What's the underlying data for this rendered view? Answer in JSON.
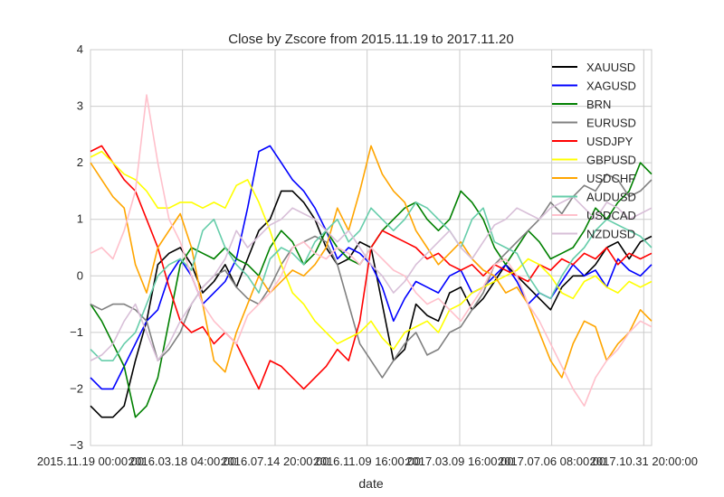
{
  "chart_data": {
    "type": "line",
    "title": "Close by Zscore from 2015.11.19 to 2017.11.20",
    "xlabel": "date",
    "ylabel": "",
    "ylim": [
      -3,
      4
    ],
    "yticks": [
      -3,
      -2,
      -1,
      0,
      1,
      2,
      3,
      4
    ],
    "ytick_labels": [
      "−3",
      "−2",
      "−1",
      "0",
      "1",
      "2",
      "3",
      "4"
    ],
    "xlim": [
      0,
      1
    ],
    "xticks": [
      0,
      0.164,
      0.329,
      0.493,
      0.658,
      0.822,
      0.986
    ],
    "xtick_labels": [
      "2015.11.19 00:00:00",
      "2016.03.18 04:00:00",
      "2016.07.14 20:00:00",
      "2016.11.09 16:00:00",
      "2017.03.09 16:00:00",
      "2017.07.06 08:00:00",
      "2017.10.31 20:00:00"
    ],
    "grid": true,
    "legend_position": "top-right",
    "x": [
      0,
      0.02,
      0.04,
      0.06,
      0.08,
      0.1,
      0.12,
      0.14,
      0.16,
      0.18,
      0.2,
      0.22,
      0.24,
      0.26,
      0.28,
      0.3,
      0.32,
      0.34,
      0.36,
      0.38,
      0.4,
      0.42,
      0.44,
      0.46,
      0.48,
      0.5,
      0.52,
      0.54,
      0.56,
      0.58,
      0.6,
      0.62,
      0.64,
      0.66,
      0.68,
      0.7,
      0.72,
      0.74,
      0.76,
      0.78,
      0.8,
      0.82,
      0.84,
      0.86,
      0.88,
      0.9,
      0.92,
      0.94,
      0.96,
      0.98,
      1.0
    ],
    "series": [
      {
        "name": "XAUUSD",
        "color": "#000000",
        "values": [
          -2.3,
          -2.5,
          -2.5,
          -2.3,
          -1.5,
          -0.8,
          0.2,
          0.4,
          0.5,
          0.2,
          -0.3,
          -0.1,
          0.2,
          -0.2,
          0.3,
          0.8,
          1.0,
          1.5,
          1.5,
          1.3,
          1.0,
          0.5,
          0.2,
          0.3,
          0.6,
          0.5,
          -0.5,
          -1.5,
          -1.3,
          -0.5,
          -0.7,
          -0.8,
          -0.3,
          -0.2,
          -0.6,
          -0.4,
          -0.1,
          0.2,
          0.0,
          -0.2,
          -0.4,
          -0.6,
          -0.2,
          0.0,
          0.0,
          0.2,
          0.5,
          0.6,
          0.3,
          0.6,
          0.7
        ]
      },
      {
        "name": "XAGUSD",
        "color": "#0000ff",
        "values": [
          -1.8,
          -2.0,
          -2.0,
          -1.6,
          -1.2,
          -0.8,
          -0.6,
          0.0,
          0.3,
          0.0,
          -0.5,
          -0.3,
          -0.1,
          0.3,
          1.2,
          2.2,
          2.3,
          2.0,
          1.7,
          1.5,
          1.2,
          0.8,
          0.3,
          0.5,
          0.4,
          0.2,
          -0.2,
          -0.8,
          -0.4,
          -0.1,
          -0.2,
          -0.3,
          0.0,
          0.1,
          -0.3,
          -0.2,
          0.0,
          0.2,
          -0.1,
          -0.5,
          -0.3,
          -0.4,
          -0.1,
          0.2,
          0.0,
          0.1,
          -0.2,
          0.3,
          0.1,
          0.0,
          0.2
        ]
      },
      {
        "name": "BRN",
        "color": "#008000",
        "values": [
          -0.5,
          -0.8,
          -1.2,
          -1.6,
          -2.5,
          -2.3,
          -1.8,
          -0.8,
          0.2,
          0.5,
          0.4,
          0.3,
          0.5,
          0.3,
          0.2,
          0.0,
          0.5,
          0.8,
          0.6,
          0.2,
          0.4,
          0.8,
          0.5,
          0.3,
          0.2,
          0.5,
          0.8,
          1.0,
          1.2,
          1.3,
          1.0,
          0.8,
          1.0,
          1.5,
          1.3,
          1.0,
          0.5,
          0.2,
          0.5,
          0.8,
          0.6,
          0.3,
          0.4,
          0.5,
          0.8,
          1.2,
          1.0,
          1.3,
          1.5,
          2.0,
          1.8
        ]
      },
      {
        "name": "EURUSD",
        "color": "#808080",
        "values": [
          -0.5,
          -0.6,
          -0.5,
          -0.5,
          -0.6,
          -0.8,
          -1.5,
          -1.3,
          -1.0,
          -0.5,
          -0.2,
          0.0,
          0.1,
          -0.2,
          -0.4,
          -0.5,
          -0.2,
          0.2,
          0.5,
          0.6,
          0.7,
          0.6,
          0.2,
          -0.5,
          -1.2,
          -1.5,
          -1.8,
          -1.5,
          -1.2,
          -1.0,
          -1.4,
          -1.3,
          -1.0,
          -0.9,
          -0.6,
          -0.3,
          0.2,
          0.4,
          0.6,
          0.8,
          1.0,
          1.3,
          1.1,
          1.4,
          1.6,
          1.5,
          1.8,
          1.7,
          1.4,
          1.5,
          1.7
        ]
      },
      {
        "name": "USDJPY",
        "color": "#ff0000",
        "values": [
          2.2,
          2.3,
          2.0,
          1.7,
          1.5,
          1.0,
          0.5,
          -0.2,
          -0.8,
          -1.0,
          -0.9,
          -1.2,
          -1.0,
          -1.2,
          -1.6,
          -2.0,
          -1.5,
          -1.6,
          -1.8,
          -2.0,
          -1.8,
          -1.6,
          -1.3,
          -1.5,
          -0.8,
          0.5,
          0.8,
          0.7,
          0.6,
          0.5,
          0.3,
          0.4,
          0.2,
          0.1,
          0.2,
          0.0,
          0.2,
          0.1,
          0.0,
          -0.1,
          0.2,
          0.1,
          0.3,
          0.2,
          0.4,
          0.3,
          0.5,
          0.2,
          0.4,
          0.3,
          0.4
        ]
      },
      {
        "name": "GBPUSD",
        "color": "#ffff00",
        "values": [
          2.1,
          2.2,
          2.0,
          1.8,
          1.7,
          1.5,
          1.2,
          1.2,
          1.3,
          1.3,
          1.2,
          1.3,
          1.2,
          1.6,
          1.7,
          1.3,
          0.8,
          0.2,
          -0.3,
          -0.5,
          -0.8,
          -1.0,
          -1.2,
          -1.1,
          -1.0,
          -0.8,
          -1.1,
          -1.3,
          -1.0,
          -0.9,
          -0.8,
          -1.0,
          -0.6,
          -0.5,
          -0.3,
          -0.2,
          -0.1,
          0.0,
          0.1,
          0.3,
          0.2,
          0.0,
          -0.3,
          -0.4,
          -0.1,
          0.0,
          -0.2,
          -0.3,
          -0.1,
          -0.2,
          -0.1
        ]
      },
      {
        "name": "USDCHF",
        "color": "#ffa500",
        "values": [
          2.0,
          1.7,
          1.4,
          1.2,
          0.2,
          -0.3,
          0.5,
          0.8,
          1.1,
          0.5,
          -0.5,
          -1.5,
          -1.7,
          -1.0,
          -0.5,
          0.0,
          -0.3,
          -0.1,
          0.1,
          0.0,
          0.2,
          0.5,
          1.2,
          0.8,
          1.5,
          2.3,
          1.8,
          1.5,
          1.3,
          0.8,
          0.5,
          0.2,
          0.4,
          0.6,
          0.3,
          0.1,
          0.0,
          -0.3,
          -0.2,
          -0.5,
          -1.0,
          -1.5,
          -1.8,
          -1.2,
          -0.8,
          -0.9,
          -1.5,
          -1.2,
          -1.0,
          -0.6,
          -0.8
        ]
      },
      {
        "name": "AUDUSD",
        "color": "#66cdaa",
        "values": [
          -1.3,
          -1.5,
          -1.5,
          -1.2,
          -1.0,
          -0.5,
          0.0,
          0.2,
          0.3,
          0.1,
          0.8,
          1.0,
          0.5,
          0.2,
          0.0,
          -0.3,
          0.3,
          0.5,
          0.4,
          0.2,
          0.6,
          0.8,
          1.0,
          0.6,
          0.8,
          1.2,
          1.0,
          0.8,
          1.0,
          1.3,
          1.2,
          1.0,
          0.8,
          0.5,
          1.0,
          1.2,
          0.6,
          0.5,
          0.4,
          0.0,
          -0.3,
          -0.4,
          0.0,
          0.3,
          0.5,
          0.8,
          1.0,
          0.9,
          0.8,
          0.7,
          0.5
        ]
      },
      {
        "name": "USDCAD",
        "color": "#ffc0cb",
        "values": [
          0.4,
          0.5,
          0.3,
          0.8,
          1.5,
          3.2,
          2.0,
          1.0,
          0.6,
          0.0,
          -0.5,
          -0.8,
          -1.0,
          -1.2,
          -0.7,
          -0.5,
          -0.3,
          0.0,
          0.5,
          0.6,
          0.4,
          0.3,
          0.5,
          0.4,
          0.2,
          0.5,
          0.3,
          0.1,
          0.0,
          -0.3,
          -0.5,
          -0.4,
          -0.6,
          -0.8,
          -0.5,
          -0.2,
          0.2,
          0.3,
          0.0,
          -0.5,
          -0.8,
          -1.2,
          -1.6,
          -2.0,
          -2.3,
          -1.8,
          -1.5,
          -1.3,
          -1.0,
          -0.8,
          -0.9
        ]
      },
      {
        "name": "NZDUSD",
        "color": "#d8bfd8",
        "values": [
          -1.5,
          -1.4,
          -1.2,
          -0.8,
          -0.5,
          -1.0,
          -1.5,
          -1.2,
          -0.8,
          -0.5,
          -0.2,
          0.0,
          0.3,
          0.8,
          0.5,
          0.7,
          0.9,
          1.0,
          1.2,
          1.1,
          1.0,
          0.8,
          0.6,
          0.8,
          0.5,
          0.2,
          0.0,
          -0.3,
          -0.1,
          0.2,
          0.4,
          0.6,
          0.8,
          0.5,
          0.3,
          0.6,
          0.9,
          1.0,
          1.2,
          1.1,
          1.0,
          1.2,
          1.3,
          1.4,
          1.2,
          1.0,
          1.3,
          1.2,
          1.0,
          1.1,
          1.2
        ]
      }
    ]
  }
}
